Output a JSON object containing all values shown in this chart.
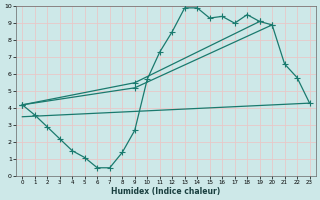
{
  "xlabel": "Humidex (Indice chaleur)",
  "bg_color": "#cde8e8",
  "grid_color": "#e8c8c8",
  "line_color": "#1a7a6e",
  "xlim": [
    -0.5,
    23.5
  ],
  "ylim": [
    0,
    10
  ],
  "xticks": [
    0,
    1,
    2,
    3,
    4,
    5,
    6,
    7,
    8,
    9,
    10,
    11,
    12,
    13,
    14,
    15,
    16,
    17,
    18,
    19,
    20,
    21,
    22,
    23
  ],
  "yticks": [
    0,
    1,
    2,
    3,
    4,
    5,
    6,
    7,
    8,
    9,
    10
  ],
  "curve1_x": [
    0,
    1,
    2,
    3,
    4,
    5,
    6,
    7,
    8,
    9,
    10,
    11,
    12,
    13,
    14,
    15,
    16,
    17,
    18,
    19,
    20,
    21,
    22,
    23
  ],
  "curve1_y": [
    4.2,
    3.6,
    2.9,
    2.2,
    1.5,
    1.1,
    0.5,
    0.5,
    1.4,
    2.7,
    5.7,
    7.3,
    8.5,
    9.9,
    9.9,
    9.3,
    9.4,
    9.0,
    9.5,
    9.1,
    8.9,
    6.6,
    5.8,
    4.3
  ],
  "curve2_x": [
    0,
    9,
    19
  ],
  "curve2_y": [
    4.2,
    5.5,
    9.1
  ],
  "curve3_x": [
    0,
    9,
    20
  ],
  "curve3_y": [
    4.2,
    5.2,
    8.9
  ],
  "curve4_x": [
    0,
    23
  ],
  "curve4_y": [
    3.5,
    4.3
  ]
}
